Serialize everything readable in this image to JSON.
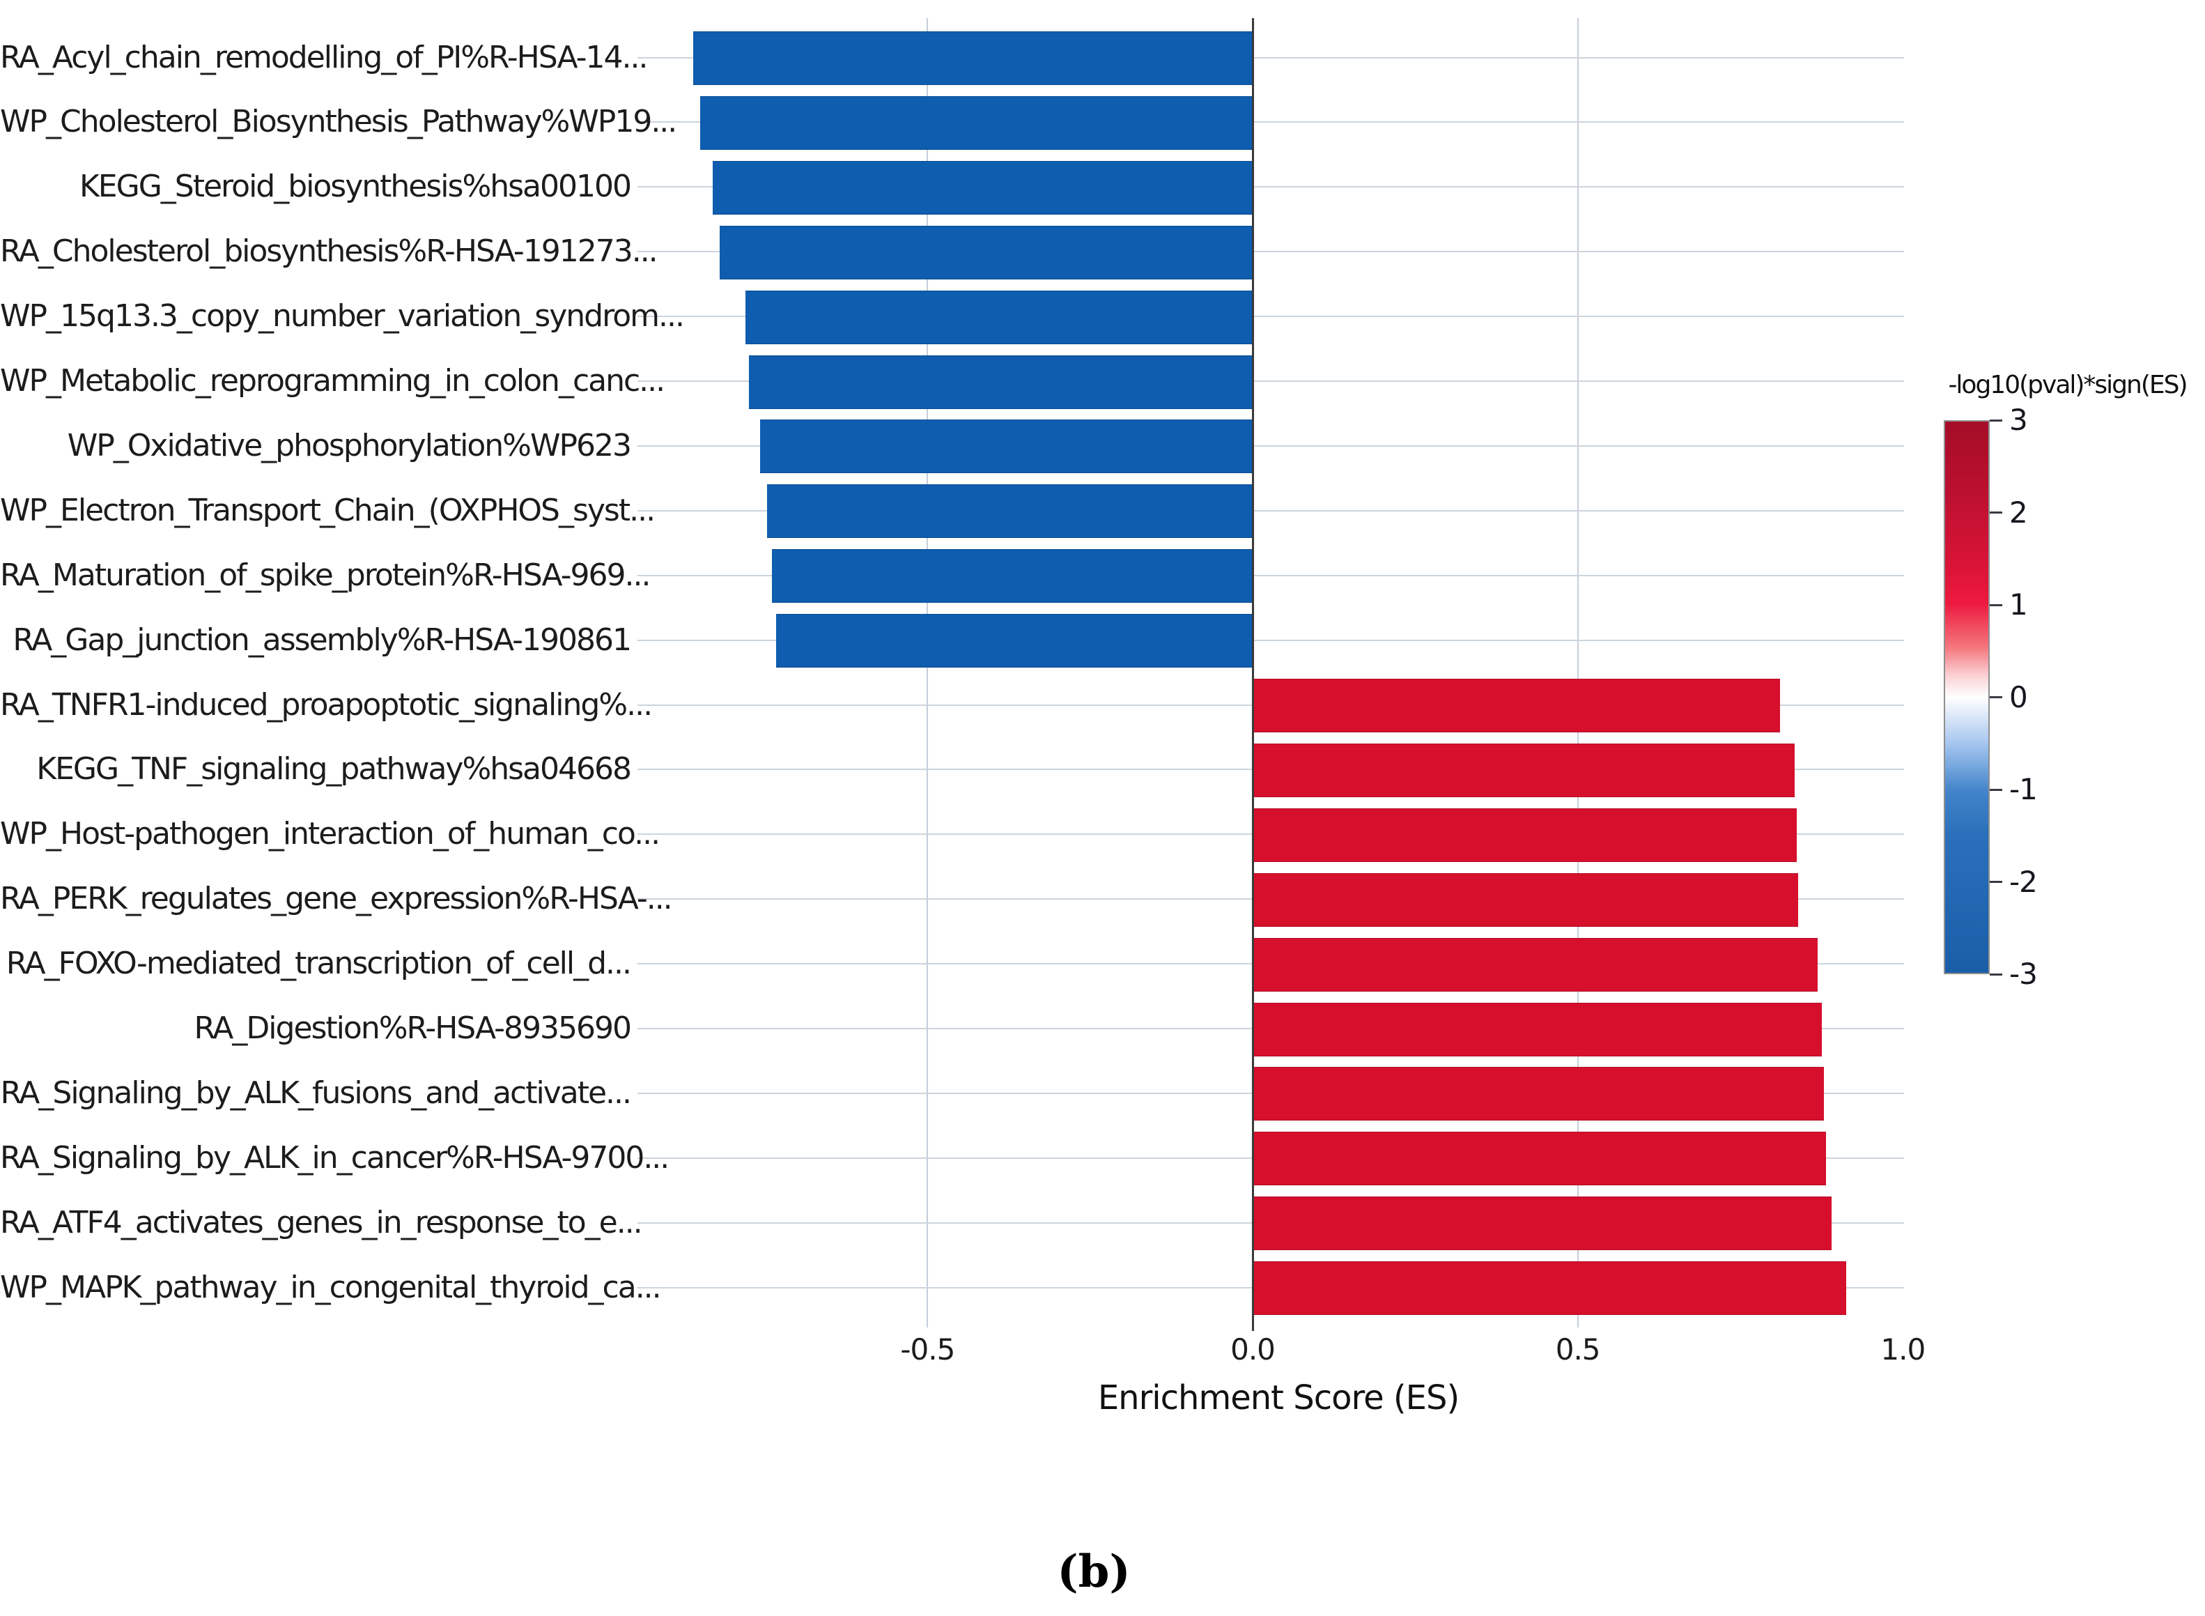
{
  "figure": {
    "caption": "(b)"
  },
  "chart_data": {
    "type": "bar",
    "orientation": "horizontal",
    "title": "",
    "xlabel": "Enrichment Score (ES)",
    "ylabel": "",
    "xlim": [
      -0.93,
      1.0
    ],
    "grid": true,
    "legend_position": "right",
    "xticks": [
      {
        "value": -0.5,
        "label": "-0.5"
      },
      {
        "value": 0.0,
        "label": "0.0"
      },
      {
        "value": 0.5,
        "label": "0.5"
      },
      {
        "value": 1.0,
        "label": "1.0"
      }
    ],
    "gridline_values": [
      -0.5,
      0.5
    ],
    "categories": [
      "RA_Acyl_chain_remodelling_of_PI%R-HSA-14...",
      "WP_Cholesterol_Biosynthesis_Pathway%WP19...",
      "KEGG_Steroid_biosynthesis%hsa00100",
      "RA_Cholesterol_biosynthesis%R-HSA-191273...",
      "WP_15q13.3_copy_number_variation_syndrom...",
      "WP_Metabolic_reprogramming_in_colon_canc...",
      "WP_Oxidative_phosphorylation%WP623",
      "WP_Electron_Transport_Chain_(OXPHOS_syst...",
      "RA_Maturation_of_spike_protein%R-HSA-969...",
      "RA_Gap_junction_assembly%R-HSA-190861",
      "RA_TNFR1-induced_proapoptotic_signaling%...",
      "KEGG_TNF_signaling_pathway%hsa04668",
      "WP_Host-pathogen_interaction_of_human_co...",
      "RA_PERK_regulates_gene_expression%R-HSA-...",
      "RA_FOXO-mediated_transcription_of_cell_d...",
      "RA_Digestion%R-HSA-8935690",
      "RA_Signaling_by_ALK_fusions_and_activate...",
      "RA_Signaling_by_ALK_in_cancer%R-HSA-9700...",
      "RA_ATF4_activates_genes_in_response_to_e...",
      "WP_MAPK_pathway_in_congenital_thyroid_ca..."
    ],
    "values": [
      -0.86,
      -0.85,
      -0.83,
      -0.82,
      -0.78,
      -0.775,
      -0.757,
      -0.747,
      -0.739,
      -0.733,
      0.81,
      0.832,
      0.836,
      0.838,
      0.868,
      0.874,
      0.878,
      0.881,
      0.889,
      0.912
    ],
    "bar_color_negative": "#0E5DAF",
    "bar_color_positive": "#D60F2D",
    "colorbar": {
      "title": "-log10(pval)*sign(ES)",
      "range": [
        -3,
        3
      ],
      "ticks": [
        {
          "value": 3,
          "label": "3"
        },
        {
          "value": 2,
          "label": "2"
        },
        {
          "value": 1,
          "label": "1"
        },
        {
          "value": 0,
          "label": "0"
        },
        {
          "value": -1,
          "label": "-1"
        },
        {
          "value": -2,
          "label": "-2"
        },
        {
          "value": -3,
          "label": "-3"
        }
      ],
      "gradient_stops": [
        [
          "0%",
          "#A50D27"
        ],
        [
          "13%",
          "#BC1030"
        ],
        [
          "27%",
          "#DC1438"
        ],
        [
          "33%",
          "#EE1A3F"
        ],
        [
          "41%",
          "#F4777E"
        ],
        [
          "46%",
          "#FBD0D4"
        ],
        [
          "50%",
          "#FFFFFF"
        ],
        [
          "54%",
          "#D6E4F7"
        ],
        [
          "59%",
          "#9FC2ED"
        ],
        [
          "67%",
          "#4384CA"
        ],
        [
          "75%",
          "#2A70BA"
        ],
        [
          "100%",
          "#1A5EA8"
        ]
      ]
    }
  }
}
